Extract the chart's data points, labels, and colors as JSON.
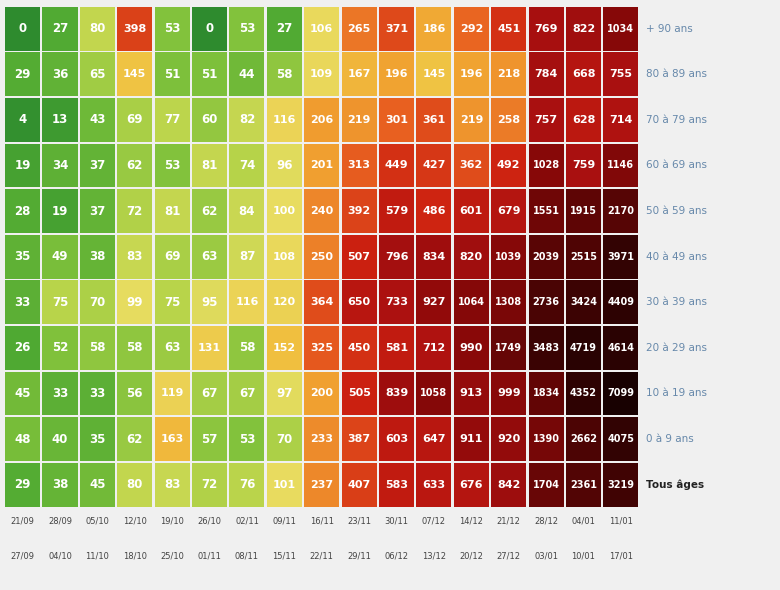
{
  "rows": [
    {
      "label": "+ 90 ans",
      "values": [
        0,
        27,
        80,
        398,
        53,
        0,
        53,
        27,
        106,
        265,
        371,
        186,
        292,
        451,
        769,
        822,
        1034
      ]
    },
    {
      "label": "80 à 89 ans",
      "values": [
        29,
        36,
        65,
        145,
        51,
        51,
        44,
        58,
        109,
        167,
        196,
        145,
        196,
        218,
        784,
        668,
        755
      ]
    },
    {
      "label": "70 à 79 ans",
      "values": [
        4,
        13,
        43,
        69,
        77,
        60,
        82,
        116,
        206,
        219,
        301,
        361,
        219,
        258,
        757,
        628,
        714
      ]
    },
    {
      "label": "60 à 69 ans",
      "values": [
        19,
        34,
        37,
        62,
        53,
        81,
        74,
        96,
        201,
        313,
        449,
        427,
        362,
        492,
        1028,
        759,
        1146
      ]
    },
    {
      "label": "50 à 59 ans",
      "values": [
        28,
        19,
        37,
        72,
        81,
        62,
        84,
        100,
        240,
        392,
        579,
        486,
        601,
        679,
        1551,
        1915,
        2170
      ]
    },
    {
      "label": "40 à 49 ans",
      "values": [
        35,
        49,
        38,
        83,
        69,
        63,
        87,
        108,
        250,
        507,
        796,
        834,
        820,
        1039,
        2039,
        2515,
        3971
      ]
    },
    {
      "label": "30 à 39 ans",
      "values": [
        33,
        75,
        70,
        99,
        75,
        95,
        116,
        120,
        364,
        650,
        733,
        927,
        1064,
        1308,
        2736,
        3424,
        4409
      ]
    },
    {
      "label": "20 à 29 ans",
      "values": [
        26,
        52,
        58,
        58,
        63,
        131,
        58,
        152,
        325,
        450,
        581,
        712,
        990,
        1749,
        3483,
        4719,
        4614
      ]
    },
    {
      "label": "10 à 19 ans",
      "values": [
        45,
        33,
        33,
        56,
        119,
        67,
        67,
        97,
        200,
        505,
        839,
        1058,
        913,
        999,
        1834,
        4352,
        7099
      ]
    },
    {
      "label": "0 à 9 ans",
      "values": [
        48,
        40,
        35,
        62,
        163,
        57,
        53,
        70,
        233,
        387,
        603,
        647,
        911,
        920,
        1390,
        2662,
        4075
      ]
    },
    {
      "label": "Tous âges",
      "values": [
        29,
        38,
        45,
        80,
        83,
        72,
        76,
        101,
        237,
        407,
        583,
        633,
        676,
        842,
        1704,
        2361,
        3219
      ]
    }
  ],
  "col_labels_line1": [
    "21/09",
    "28/09",
    "05/10",
    "12/10",
    "19/10",
    "26/10",
    "02/11",
    "09/11",
    "16/11",
    "23/11",
    "30/11",
    "07/12",
    "14/12",
    "21/12",
    "28/12",
    "04/01",
    "11/01"
  ],
  "col_labels_line2": [
    "27/09",
    "04/10",
    "11/10",
    "18/10",
    "25/10",
    "01/11",
    "08/11",
    "15/11",
    "22/11",
    "29/11",
    "06/12",
    "13/12",
    "20/12",
    "27/12",
    "03/01",
    "10/01",
    "17/01"
  ],
  "bg_color": "#f0f0f0",
  "label_color": "#6688aa",
  "tous_ages_label_color": "#222222",
  "colormap_thresholds": [
    0,
    25,
    50,
    75,
    100,
    150,
    200,
    300,
    500,
    750,
    1000,
    2000,
    3500,
    5000,
    7500
  ],
  "colormap_colors": [
    "#2e8b2e",
    "#4da832",
    "#7bbf3a",
    "#b8d44a",
    "#e8dc60",
    "#f0c040",
    "#f0a030",
    "#e86020",
    "#cc2010",
    "#aa1010",
    "#880808",
    "#5a0505",
    "#3a0303",
    "#250202",
    "#150101"
  ]
}
